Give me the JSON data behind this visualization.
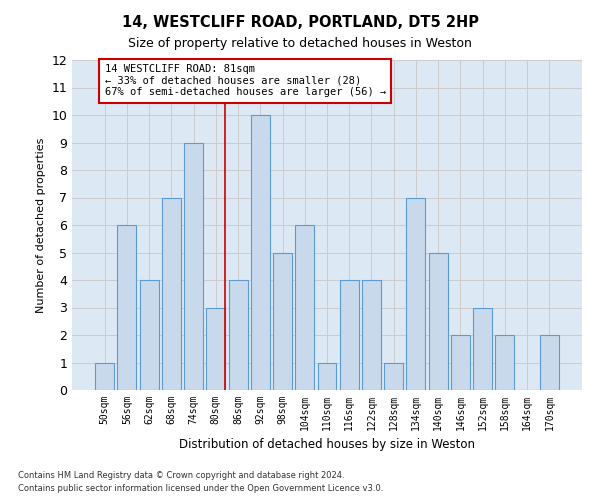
{
  "title": "14, WESTCLIFF ROAD, PORTLAND, DT5 2HP",
  "subtitle": "Size of property relative to detached houses in Weston",
  "xlabel": "Distribution of detached houses by size in Weston",
  "ylabel": "Number of detached properties",
  "footnote1": "Contains HM Land Registry data © Crown copyright and database right 2024.",
  "footnote2": "Contains public sector information licensed under the Open Government Licence v3.0.",
  "categories": [
    "50sqm",
    "56sqm",
    "62sqm",
    "68sqm",
    "74sqm",
    "80sqm",
    "86sqm",
    "92sqm",
    "98sqm",
    "104sqm",
    "110sqm",
    "116sqm",
    "122sqm",
    "128sqm",
    "134sqm",
    "140sqm",
    "146sqm",
    "152sqm",
    "158sqm",
    "164sqm",
    "170sqm"
  ],
  "values": [
    1,
    6,
    4,
    7,
    9,
    3,
    4,
    10,
    5,
    6,
    1,
    4,
    4,
    1,
    7,
    5,
    2,
    3,
    2,
    0,
    2
  ],
  "bar_color": "#c8d9eb",
  "bar_edge_color": "#5b9bd5",
  "red_line_index": 5,
  "annotation_text": "14 WESTCLIFF ROAD: 81sqm\n← 33% of detached houses are smaller (28)\n67% of semi-detached houses are larger (56) →",
  "annotation_box_color": "#ffffff",
  "annotation_box_edge": "#cc0000",
  "ylim": [
    0,
    12
  ],
  "yticks": [
    0,
    1,
    2,
    3,
    4,
    5,
    6,
    7,
    8,
    9,
    10,
    11,
    12
  ],
  "grid_color": "#cccccc",
  "background_color": "#dce9f5"
}
